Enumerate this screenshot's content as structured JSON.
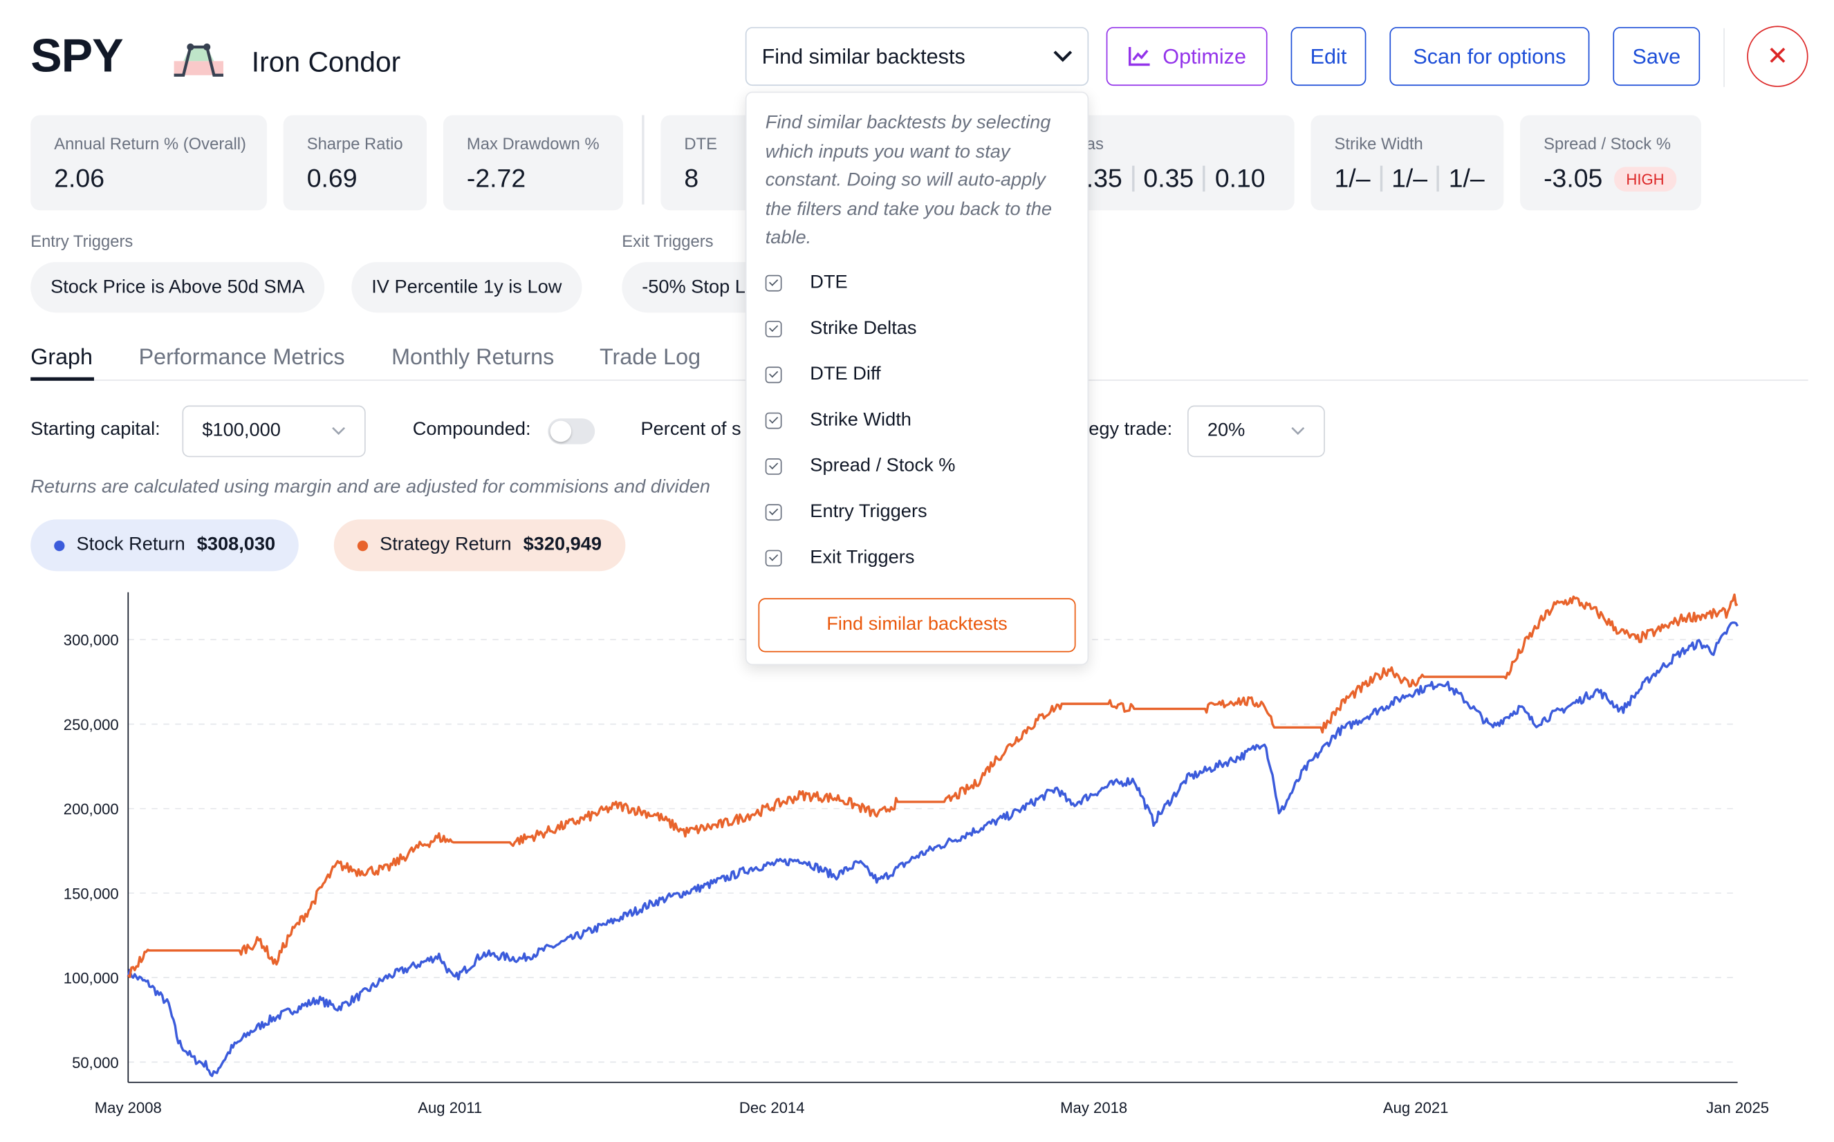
{
  "header": {
    "ticker": "SPY",
    "strategy": "Iron Condor",
    "strategy_icon": "iron-condor-payoff-icon",
    "similar_dropdown_label": "Find similar backtests",
    "optimize_label": "Optimize",
    "edit_label": "Edit",
    "scan_label": "Scan for options",
    "save_label": "Save",
    "close_glyph": "✕"
  },
  "metrics": [
    {
      "label": "Annual Return % (Overall)",
      "value": "2.06"
    },
    {
      "label": "Sharpe Ratio",
      "value": "0.69"
    },
    {
      "label": "Max Drawdown %",
      "value": "-2.72"
    }
  ],
  "params": {
    "dte": {
      "label": "DTE",
      "value": "8"
    },
    "strike_deltas": {
      "label_visible": "as",
      "values": [
        ".35",
        "0.35",
        "0.10"
      ]
    },
    "strike_width": {
      "label": "Strike Width",
      "values": [
        "1/–",
        "1/–",
        "1/–"
      ]
    },
    "spread_stock": {
      "label": "Spread / Stock %",
      "value": "-3.05",
      "badge": "HIGH"
    }
  },
  "triggers": {
    "entry_label": "Entry Triggers",
    "entry": [
      "Stock Price is Above 50d SMA",
      "IV Percentile 1y is Low"
    ],
    "exit_label": "Exit Triggers",
    "exit": [
      "-50% Stop L"
    ]
  },
  "tabs": [
    "Graph",
    "Performance Metrics",
    "Monthly Returns",
    "Trade Log"
  ],
  "active_tab": "Graph",
  "controls": {
    "starting_capital_label": "Starting capital:",
    "starting_capital": "$100,000",
    "compounded_label": "Compounded:",
    "compounded": false,
    "percent_label_visible": "Percent of s",
    "percent_label_tail": "egy trade:",
    "percent_value": "20%"
  },
  "note": "Returns are calculated using margin and are adjusted for commisions and dividen",
  "legend": {
    "stock_label": "Stock Return",
    "stock_value": "$308,030",
    "strategy_label": "Strategy Return",
    "strategy_value": "$320,949"
  },
  "popover": {
    "description": "Find similar backtests by selecting which inputs you want to stay constant. Doing so will auto-apply the filters and take you back to the table.",
    "options": [
      {
        "label": "DTE",
        "checked": true
      },
      {
        "label": "Strike Deltas",
        "checked": true
      },
      {
        "label": "DTE Diff",
        "checked": true
      },
      {
        "label": "Strike Width",
        "checked": true
      },
      {
        "label": "Spread / Stock %",
        "checked": true
      },
      {
        "label": "Entry Triggers",
        "checked": true
      },
      {
        "label": "Exit Triggers",
        "checked": true
      }
    ],
    "button_label": "Find similar backtests"
  },
  "colors": {
    "stock": "#3b5bdb",
    "strategy": "#e8632b",
    "primary": "#1d4ed8",
    "purple": "#9333ea",
    "danger": "#dc2626"
  },
  "chart_data": {
    "type": "line",
    "x_ticks": [
      "May 2008",
      "Aug 2011",
      "Dec 2014",
      "May 2018",
      "Aug 2021",
      "Jan 2025"
    ],
    "y_ticks": [
      50000,
      100000,
      150000,
      200000,
      250000,
      300000
    ],
    "y_tick_labels": [
      "50,000",
      "100,000",
      "150,000",
      "200,000",
      "250,000",
      "300,000"
    ],
    "ylim": [
      38000,
      328000
    ],
    "xlim": [
      2008.33,
      2025.0
    ],
    "grid": "horizontal dashed",
    "series": [
      {
        "name": "Stock Return",
        "color": "#3b5bdb",
        "points": [
          [
            2008.33,
            103000
          ],
          [
            2008.55,
            96000
          ],
          [
            2008.75,
            84000
          ],
          [
            2008.85,
            62000
          ],
          [
            2009.0,
            52000
          ],
          [
            2009.15,
            48000
          ],
          [
            2009.2,
            41000
          ],
          [
            2009.4,
            58000
          ],
          [
            2009.6,
            68000
          ],
          [
            2009.8,
            75000
          ],
          [
            2010.0,
            80000
          ],
          [
            2010.3,
            87000
          ],
          [
            2010.5,
            82000
          ],
          [
            2010.75,
            90000
          ],
          [
            2011.0,
            100000
          ],
          [
            2011.3,
            107000
          ],
          [
            2011.55,
            113000
          ],
          [
            2011.7,
            99000
          ],
          [
            2011.85,
            106000
          ],
          [
            2012.0,
            114000
          ],
          [
            2012.4,
            111000
          ],
          [
            2012.8,
            120000
          ],
          [
            2013.3,
            132000
          ],
          [
            2013.8,
            145000
          ],
          [
            2014.3,
            154000
          ],
          [
            2014.8,
            165000
          ],
          [
            2015.3,
            170000
          ],
          [
            2015.65,
            160000
          ],
          [
            2015.9,
            168000
          ],
          [
            2016.1,
            157000
          ],
          [
            2016.5,
            172000
          ],
          [
            2016.9,
            182000
          ],
          [
            2017.5,
            197000
          ],
          [
            2017.95,
            212000
          ],
          [
            2018.1,
            202000
          ],
          [
            2018.5,
            214000
          ],
          [
            2018.75,
            217000
          ],
          [
            2018.95,
            192000
          ],
          [
            2019.3,
            218000
          ],
          [
            2019.9,
            232000
          ],
          [
            2020.1,
            240000
          ],
          [
            2020.2,
            215000
          ],
          [
            2020.25,
            196000
          ],
          [
            2020.5,
            222000
          ],
          [
            2020.85,
            245000
          ],
          [
            2021.2,
            256000
          ],
          [
            2021.6,
            268000
          ],
          [
            2021.95,
            275000
          ],
          [
            2022.2,
            263000
          ],
          [
            2022.45,
            248000
          ],
          [
            2022.75,
            260000
          ],
          [
            2022.9,
            250000
          ],
          [
            2023.3,
            262000
          ],
          [
            2023.55,
            270000
          ],
          [
            2023.8,
            258000
          ],
          [
            2024.1,
            278000
          ],
          [
            2024.4,
            292000
          ],
          [
            2024.6,
            298000
          ],
          [
            2024.75,
            293000
          ],
          [
            2024.95,
            310000
          ],
          [
            2025.0,
            308000
          ]
        ]
      },
      {
        "name": "Strategy Return",
        "color": "#e8632b",
        "points": [
          [
            2008.33,
            101000
          ],
          [
            2008.45,
            110000
          ],
          [
            2008.55,
            116000
          ],
          [
            2009.5,
            116000
          ],
          [
            2009.7,
            122000
          ],
          [
            2009.85,
            108000
          ],
          [
            2010.0,
            125000
          ],
          [
            2010.2,
            140000
          ],
          [
            2010.35,
            155000
          ],
          [
            2010.5,
            167000
          ],
          [
            2010.7,
            163000
          ],
          [
            2011.0,
            164000
          ],
          [
            2011.3,
            176000
          ],
          [
            2011.55,
            183000
          ],
          [
            2011.7,
            180000
          ],
          [
            2012.3,
            180000
          ],
          [
            2012.6,
            185000
          ],
          [
            2013.0,
            193000
          ],
          [
            2013.4,
            202000
          ],
          [
            2013.8,
            196000
          ],
          [
            2014.1,
            186000
          ],
          [
            2014.5,
            191000
          ],
          [
            2014.9,
            199000
          ],
          [
            2015.3,
            208000
          ],
          [
            2015.7,
            206000
          ],
          [
            2016.1,
            196000
          ],
          [
            2016.3,
            204000
          ],
          [
            2016.8,
            204000
          ],
          [
            2017.1,
            214000
          ],
          [
            2017.3,
            228000
          ],
          [
            2017.6,
            245000
          ],
          [
            2017.85,
            257000
          ],
          [
            2018.0,
            262000
          ],
          [
            2018.5,
            262000
          ],
          [
            2018.75,
            259000
          ],
          [
            2019.5,
            259000
          ],
          [
            2019.8,
            264000
          ],
          [
            2020.1,
            262000
          ],
          [
            2020.2,
            248000
          ],
          [
            2020.7,
            248000
          ],
          [
            2020.95,
            265000
          ],
          [
            2021.2,
            275000
          ],
          [
            2021.4,
            283000
          ],
          [
            2021.6,
            273000
          ],
          [
            2021.75,
            278000
          ],
          [
            2022.6,
            278000
          ],
          [
            2022.8,
            298000
          ],
          [
            2022.95,
            310000
          ],
          [
            2023.1,
            320000
          ],
          [
            2023.3,
            324000
          ],
          [
            2023.55,
            316000
          ],
          [
            2023.75,
            306000
          ],
          [
            2023.95,
            300000
          ],
          [
            2024.2,
            306000
          ],
          [
            2024.45,
            313000
          ],
          [
            2024.9,
            316000
          ],
          [
            2024.95,
            326000
          ],
          [
            2025.0,
            320949
          ]
        ]
      }
    ]
  }
}
